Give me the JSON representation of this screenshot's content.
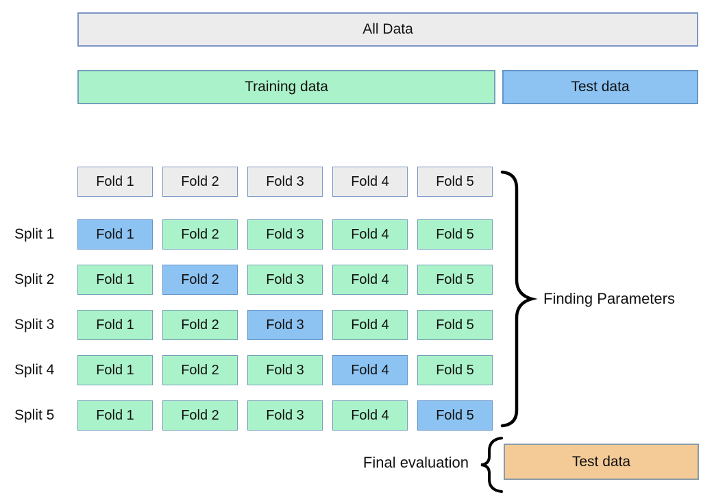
{
  "top_bars": {
    "all_data": "All Data",
    "training": "Training data",
    "test": "Test data"
  },
  "grid": {
    "header_folds": [
      "Fold 1",
      "Fold 2",
      "Fold 3",
      "Fold 4",
      "Fold 5"
    ],
    "splits": [
      {
        "label": "Split 1",
        "folds": [
          "Fold 1",
          "Fold 2",
          "Fold 3",
          "Fold 4",
          "Fold 5"
        ],
        "test_fold_index": 0
      },
      {
        "label": "Split 2",
        "folds": [
          "Fold 1",
          "Fold 2",
          "Fold 3",
          "Fold 4",
          "Fold 5"
        ],
        "test_fold_index": 1
      },
      {
        "label": "Split 3",
        "folds": [
          "Fold 1",
          "Fold 2",
          "Fold 3",
          "Fold 4",
          "Fold 5"
        ],
        "test_fold_index": 2
      },
      {
        "label": "Split 4",
        "folds": [
          "Fold 1",
          "Fold 2",
          "Fold 3",
          "Fold 4",
          "Fold 5"
        ],
        "test_fold_index": 3
      },
      {
        "label": "Split 5",
        "folds": [
          "Fold 1",
          "Fold 2",
          "Fold 3",
          "Fold 4",
          "Fold 5"
        ],
        "test_fold_index": 4
      }
    ]
  },
  "annotations": {
    "finding_parameters": "Finding Parameters",
    "final_evaluation": "Final evaluation",
    "final_test": "Test data"
  },
  "colors": {
    "gray_fill": "#ececec",
    "gray_border": "#7b96c4",
    "green_fill": "#aaf2c9",
    "green_border": "#74a0b8",
    "blue_fill": "#8cc3f2",
    "blue_border": "#6594c8",
    "orange_fill": "#f4cb97",
    "orange_border": "#8a9aa9",
    "brace": "#000000",
    "text": "#111111"
  }
}
